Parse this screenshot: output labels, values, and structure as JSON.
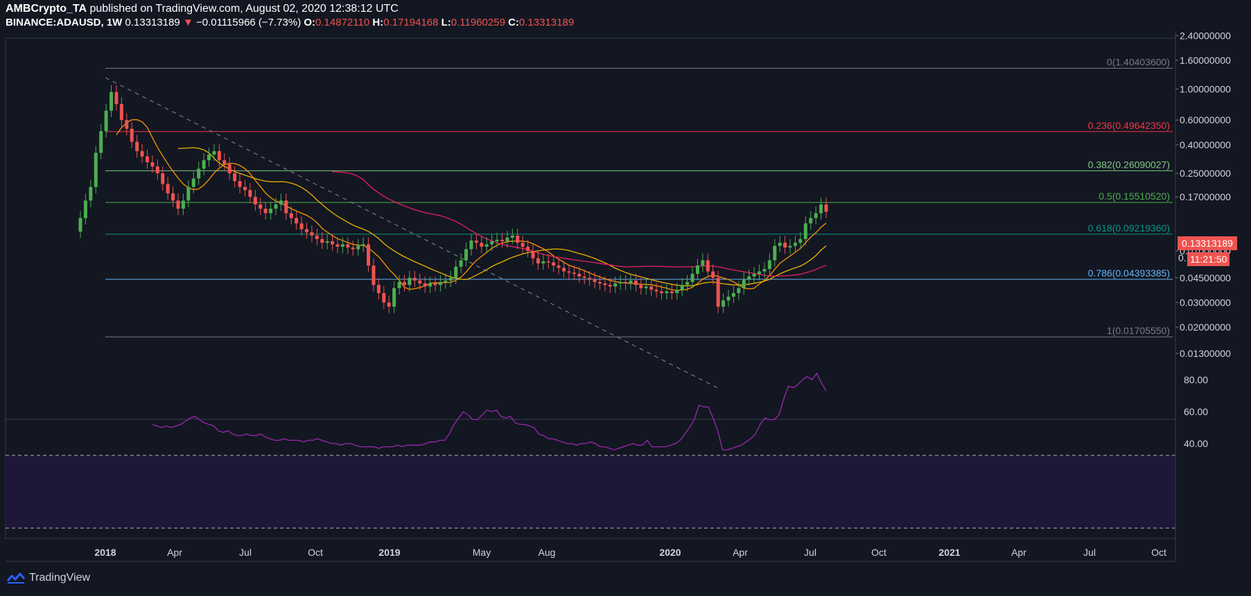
{
  "header": {
    "author": "AMBCrypto_TA",
    "published_text": "published on TradingView.com, August 02, 2020 12:38:12 UTC",
    "symbol": "BINANCE:ADAUSD, 1W",
    "last": "0.13313189",
    "arrow": "▼",
    "change": "−0.01115966 (−7.73%)",
    "o_label": "O:",
    "o": "0.14872110",
    "h_label": "H:",
    "h": "0.17194168",
    "l_label": "L:",
    "l": "0.11960259",
    "c_label": "C:",
    "c": "0.13313189"
  },
  "price_tags": {
    "last_price": "0.13313189",
    "countdown": "11:21:50",
    "partial_label": "0."
  },
  "footer": {
    "brand": "TradingView"
  },
  "colors": {
    "background": "#131722",
    "up": "#4caf50",
    "down": "#ef5350",
    "rsi": "#9c27b0",
    "ma_orange": "#ff9800",
    "ma_yellow": "#f0b400",
    "ma_pink": "#e91e63"
  },
  "chart_data": [
    {
      "type": "candlestick",
      "scale": "log",
      "y_ticks": [
        "2.40000000",
        "1.60000000",
        "1.00000000",
        "0.60000000",
        "0.40000000",
        "0.25000000",
        "0.17000000",
        "0.07000000",
        "0.04500000",
        "0.03000000",
        "0.02000000",
        "0.01300000"
      ],
      "x_ticks": [
        "2018",
        "Apr",
        "Jul",
        "Oct",
        "2019",
        "May",
        "Aug",
        "2020",
        "Apr",
        "Jul",
        "Oct",
        "2021",
        "Apr",
        "Jul",
        "Oct"
      ],
      "fib_levels": [
        {
          "label": "0(1.40403600)",
          "value": 1.404036,
          "color": "#787b86"
        },
        {
          "label": "0.236(0.49642350)",
          "value": 0.4964235,
          "color": "#f23645"
        },
        {
          "label": "0.382(0.26090027)",
          "value": 0.26090027,
          "color": "#81c784"
        },
        {
          "label": "0.5(0.15510520)",
          "value": 0.1551052,
          "color": "#4caf50"
        },
        {
          "label": "0.618(0.09219360)",
          "value": 0.0921936,
          "color": "#089981"
        },
        {
          "label": "0.786(0.04393385)",
          "value": 0.04393385,
          "color": "#64b5f6"
        },
        {
          "label": "1(0.01705550)",
          "value": 0.0170555,
          "color": "#787b86"
        }
      ],
      "closes": [
        0.12,
        0.16,
        0.2,
        0.35,
        0.5,
        0.7,
        0.95,
        0.78,
        0.6,
        0.52,
        0.42,
        0.36,
        0.33,
        0.3,
        0.28,
        0.25,
        0.21,
        0.18,
        0.16,
        0.14,
        0.16,
        0.2,
        0.23,
        0.27,
        0.31,
        0.34,
        0.36,
        0.31,
        0.29,
        0.25,
        0.22,
        0.2,
        0.19,
        0.17,
        0.15,
        0.14,
        0.13,
        0.14,
        0.15,
        0.16,
        0.13,
        0.12,
        0.11,
        0.1,
        0.095,
        0.09,
        0.085,
        0.08,
        0.082,
        0.078,
        0.075,
        0.078,
        0.074,
        0.072,
        0.076,
        0.078,
        0.055,
        0.04,
        0.035,
        0.03,
        0.028,
        0.038,
        0.042,
        0.04,
        0.045,
        0.043,
        0.041,
        0.039,
        0.041,
        0.04,
        0.042,
        0.043,
        0.045,
        0.054,
        0.06,
        0.072,
        0.083,
        0.08,
        0.075,
        0.078,
        0.082,
        0.084,
        0.082,
        0.087,
        0.09,
        0.08,
        0.075,
        0.07,
        0.062,
        0.057,
        0.059,
        0.058,
        0.055,
        0.053,
        0.05,
        0.049,
        0.048,
        0.046,
        0.045,
        0.044,
        0.042,
        0.041,
        0.04,
        0.039,
        0.041,
        0.042,
        0.041,
        0.043,
        0.04,
        0.038,
        0.039,
        0.037,
        0.036,
        0.035,
        0.036,
        0.035,
        0.037,
        0.04,
        0.042,
        0.048,
        0.055,
        0.06,
        0.05,
        0.045,
        0.028,
        0.031,
        0.033,
        0.035,
        0.038,
        0.044,
        0.046,
        0.048,
        0.05,
        0.052,
        0.06,
        0.076,
        0.08,
        0.074,
        0.076,
        0.08,
        0.085,
        0.11,
        0.12,
        0.13,
        0.15,
        0.133
      ]
    },
    {
      "type": "line",
      "name": "RSI",
      "y_ticks": [
        "80.00",
        "60.00",
        "40.00"
      ],
      "bands": [
        70,
        30
      ],
      "values": [
        52,
        51,
        50,
        51,
        50,
        51,
        52,
        54,
        56,
        57,
        55,
        53,
        52,
        51,
        48,
        47,
        48,
        46,
        45,
        45,
        46,
        45,
        45,
        46,
        44,
        43,
        42,
        42,
        43,
        42,
        42,
        42,
        41,
        42,
        42,
        43,
        42,
        41,
        40,
        40,
        39,
        40,
        40,
        39,
        38,
        38,
        38,
        38,
        37,
        38,
        38,
        38,
        39,
        38,
        39,
        39,
        39,
        39,
        40,
        41,
        41,
        42,
        42,
        46,
        52,
        56,
        60,
        58,
        55,
        55,
        58,
        61,
        60,
        61,
        57,
        56,
        57,
        53,
        52,
        52,
        51,
        50,
        46,
        45,
        43,
        43,
        42,
        41,
        40,
        40,
        39,
        40,
        40,
        41,
        40,
        38,
        38,
        37,
        36,
        37,
        38,
        39,
        40,
        39,
        39,
        42,
        38,
        38,
        38,
        38,
        39,
        40,
        42,
        46,
        50,
        55,
        64,
        63,
        63,
        56,
        48,
        36,
        36,
        37,
        38,
        39,
        41,
        43,
        46,
        52,
        56,
        55,
        55,
        58,
        68,
        76,
        75,
        77,
        80,
        82,
        80,
        84,
        78,
        73
      ]
    }
  ]
}
